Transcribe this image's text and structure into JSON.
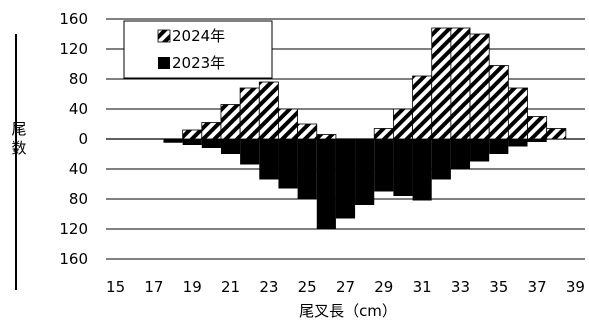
{
  "chart_data": {
    "type": "bar",
    "xlabel": "尾叉長（cm）",
    "ylabel": "尾数",
    "categories": [
      15,
      16,
      17,
      18,
      19,
      20,
      21,
      22,
      23,
      24,
      25,
      26,
      27,
      28,
      29,
      30,
      31,
      32,
      33,
      34,
      35,
      36,
      37,
      38,
      39
    ],
    "x_tick_labels": [
      "15",
      "17",
      "19",
      "21",
      "23",
      "25",
      "27",
      "29",
      "31",
      "33",
      "35",
      "37",
      "39"
    ],
    "y_tick_labels": [
      "160",
      "120",
      "80",
      "40",
      "0",
      "40",
      "80",
      "120",
      "160"
    ],
    "ylim": [
      -160,
      160
    ],
    "grid": true,
    "legend_placement": "top-left",
    "series": [
      {
        "name": "2024年",
        "direction": "up",
        "pattern": "diagonal-hatch",
        "values": [
          0,
          0,
          0,
          0,
          12,
          22,
          46,
          68,
          76,
          40,
          20,
          6,
          0,
          0,
          14,
          40,
          84,
          148,
          148,
          140,
          98,
          68,
          30,
          14,
          0
        ]
      },
      {
        "name": "2023年",
        "direction": "down",
        "pattern": "solid-black",
        "values": [
          0,
          0,
          0,
          5,
          8,
          12,
          20,
          34,
          54,
          66,
          80,
          120,
          106,
          88,
          70,
          76,
          82,
          54,
          40,
          30,
          20,
          10,
          4,
          0,
          0
        ]
      }
    ]
  }
}
